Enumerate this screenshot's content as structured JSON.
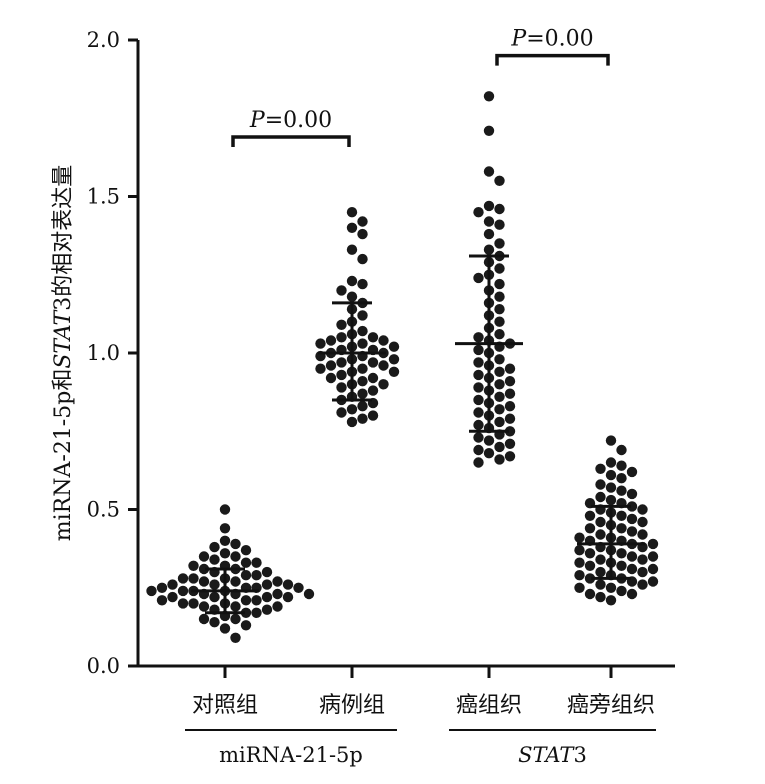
{
  "chart_data": {
    "type": "scatter",
    "ylabel": {
      "parts": [
        {
          "text": "miRNA-21-5p和",
          "italic": false
        },
        {
          "text": "STAT",
          "italic": true
        },
        {
          "text": "3的相对表达量",
          "italic": false
        }
      ]
    },
    "ylim": [
      0,
      2.0
    ],
    "yticks": [
      "0.0",
      "0.5",
      "1.0",
      "1.5",
      "2.0"
    ],
    "categories": [
      "对照组",
      "病例组",
      "癌组织",
      "癌旁组织"
    ],
    "groups": [
      {
        "category": "对照组",
        "mean": 0.24,
        "sd_low": 0.17,
        "sd_high": 0.31,
        "values": [
          0.5,
          0.44,
          0.4,
          0.39,
          0.38,
          0.37,
          0.36,
          0.35,
          0.35,
          0.34,
          0.33,
          0.33,
          0.32,
          0.32,
          0.31,
          0.31,
          0.3,
          0.3,
          0.29,
          0.29,
          0.28,
          0.28,
          0.28,
          0.27,
          0.27,
          0.27,
          0.26,
          0.26,
          0.26,
          0.26,
          0.25,
          0.25,
          0.25,
          0.25,
          0.24,
          0.24,
          0.24,
          0.24,
          0.23,
          0.23,
          0.23,
          0.23,
          0.22,
          0.22,
          0.22,
          0.22,
          0.21,
          0.21,
          0.21,
          0.2,
          0.2,
          0.2,
          0.19,
          0.19,
          0.19,
          0.18,
          0.18,
          0.17,
          0.17,
          0.16,
          0.15,
          0.15,
          0.14,
          0.13,
          0.12,
          0.09
        ]
      },
      {
        "category": "病例组",
        "mean": 1.0,
        "sd_low": 0.85,
        "sd_high": 1.16,
        "values": [
          1.45,
          1.42,
          1.4,
          1.38,
          1.33,
          1.3,
          1.23,
          1.22,
          1.2,
          1.18,
          1.16,
          1.14,
          1.12,
          1.1,
          1.09,
          1.07,
          1.06,
          1.05,
          1.05,
          1.04,
          1.04,
          1.03,
          1.03,
          1.02,
          1.02,
          1.01,
          1.01,
          1.0,
          1.0,
          0.99,
          0.99,
          0.98,
          0.98,
          0.97,
          0.97,
          0.96,
          0.96,
          0.95,
          0.95,
          0.94,
          0.94,
          0.93,
          0.92,
          0.92,
          0.91,
          0.9,
          0.9,
          0.89,
          0.88,
          0.87,
          0.86,
          0.85,
          0.84,
          0.83,
          0.82,
          0.81,
          0.8,
          0.79,
          0.78
        ]
      },
      {
        "category": "癌组织",
        "mean": 1.03,
        "sd_low": 0.75,
        "sd_high": 1.31,
        "values": [
          1.82,
          1.71,
          1.58,
          1.55,
          1.47,
          1.46,
          1.45,
          1.42,
          1.41,
          1.38,
          1.35,
          1.33,
          1.31,
          1.29,
          1.27,
          1.25,
          1.24,
          1.22,
          1.2,
          1.18,
          1.16,
          1.14,
          1.12,
          1.1,
          1.08,
          1.06,
          1.05,
          1.04,
          1.03,
          1.02,
          1.01,
          1.0,
          0.98,
          0.97,
          0.96,
          0.95,
          0.94,
          0.93,
          0.92,
          0.91,
          0.9,
          0.89,
          0.88,
          0.87,
          0.86,
          0.85,
          0.84,
          0.83,
          0.82,
          0.81,
          0.8,
          0.79,
          0.78,
          0.77,
          0.76,
          0.75,
          0.74,
          0.73,
          0.72,
          0.71,
          0.7,
          0.69,
          0.68,
          0.67,
          0.66,
          0.65
        ]
      },
      {
        "category": "癌旁组织",
        "mean": 0.39,
        "sd_low": 0.28,
        "sd_high": 0.51,
        "values": [
          0.72,
          0.69,
          0.65,
          0.64,
          0.63,
          0.62,
          0.61,
          0.6,
          0.58,
          0.57,
          0.56,
          0.55,
          0.54,
          0.53,
          0.52,
          0.52,
          0.51,
          0.5,
          0.5,
          0.49,
          0.48,
          0.48,
          0.47,
          0.46,
          0.46,
          0.45,
          0.44,
          0.44,
          0.43,
          0.42,
          0.42,
          0.41,
          0.41,
          0.4,
          0.4,
          0.39,
          0.39,
          0.38,
          0.38,
          0.37,
          0.37,
          0.36,
          0.36,
          0.35,
          0.35,
          0.34,
          0.34,
          0.33,
          0.33,
          0.32,
          0.32,
          0.31,
          0.31,
          0.3,
          0.3,
          0.29,
          0.29,
          0.28,
          0.28,
          0.27,
          0.27,
          0.26,
          0.26,
          0.25,
          0.25,
          0.24,
          0.23,
          0.23,
          0.22,
          0.21
        ]
      }
    ],
    "significance": [
      {
        "from": "对照组",
        "to": "病例组",
        "y": 1.69,
        "label": {
          "p": "P",
          "rest": "=0.00"
        }
      },
      {
        "from": "癌组织",
        "to": "癌旁组织",
        "y": 1.95,
        "label": {
          "p": "P",
          "rest": "=0.00"
        }
      }
    ],
    "group_labels": [
      {
        "from": "对照组",
        "to": "病例组",
        "label": "miRNA-21-5p",
        "italic": false
      },
      {
        "from": "癌组织",
        "to": "癌旁组织",
        "label": "STAT",
        "suffix": "3",
        "italic": true
      }
    ],
    "colors": {
      "points": "#1a1a1a",
      "axis": "#111111",
      "bars": "#111111"
    }
  }
}
